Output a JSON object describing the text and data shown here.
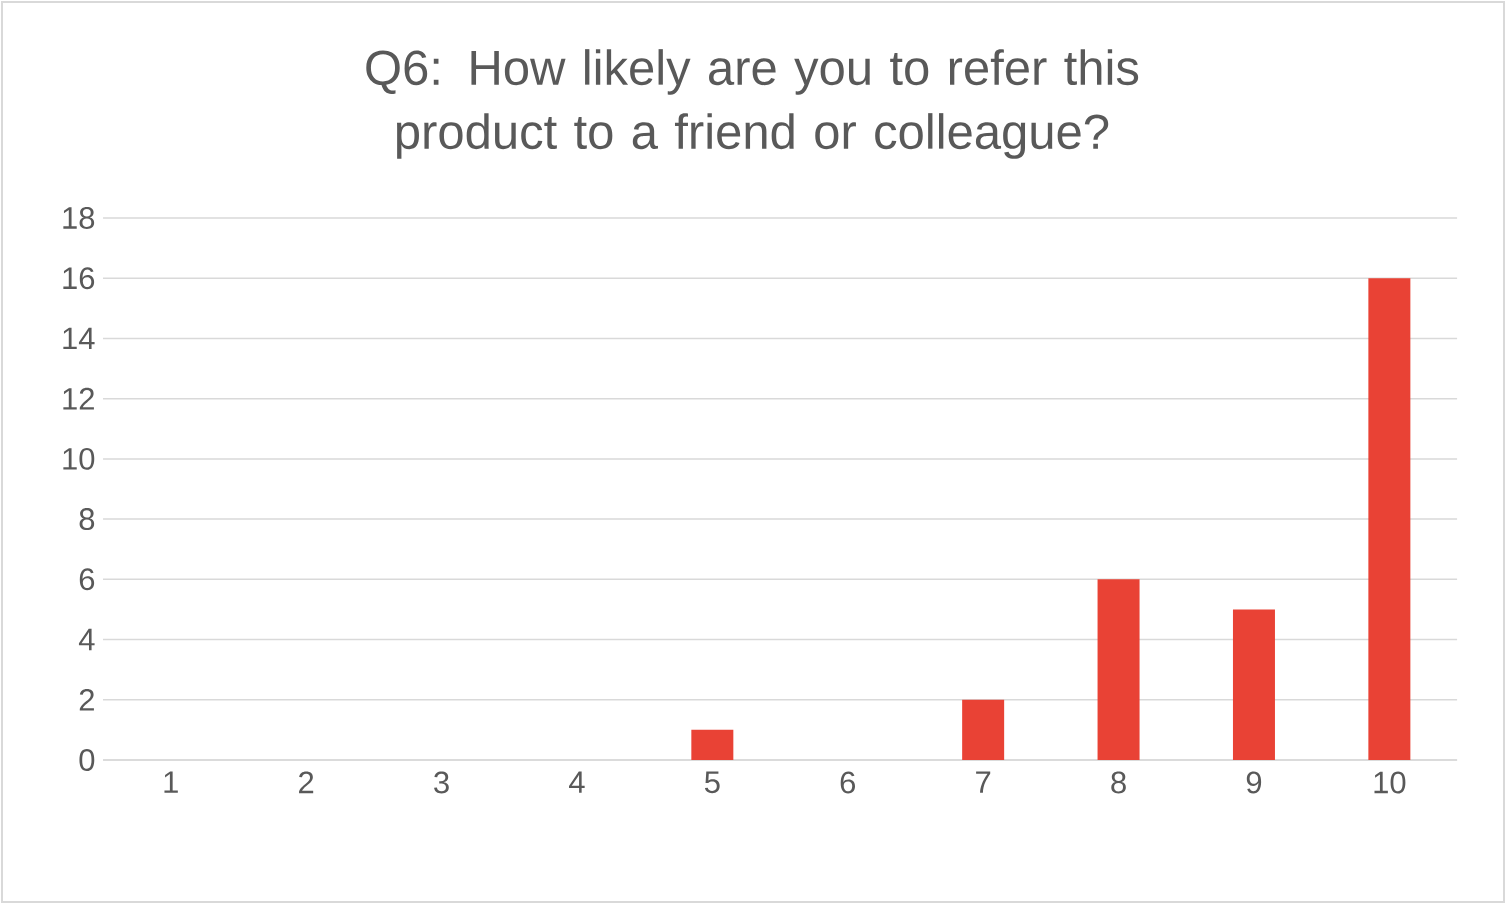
{
  "chart_data": {
    "type": "bar",
    "title": "Q6: How likely are you to refer this product to a friend or colleague?",
    "categories": [
      "1",
      "2",
      "3",
      "4",
      "5",
      "6",
      "7",
      "8",
      "9",
      "10"
    ],
    "values": [
      0,
      0,
      0,
      0,
      1,
      0,
      2,
      6,
      5,
      16
    ],
    "color": "#e94235",
    "ylim": [
      0,
      18
    ],
    "yticks": [
      0,
      2,
      4,
      6,
      8,
      10,
      12,
      14,
      16,
      18
    ],
    "grid": "y"
  }
}
